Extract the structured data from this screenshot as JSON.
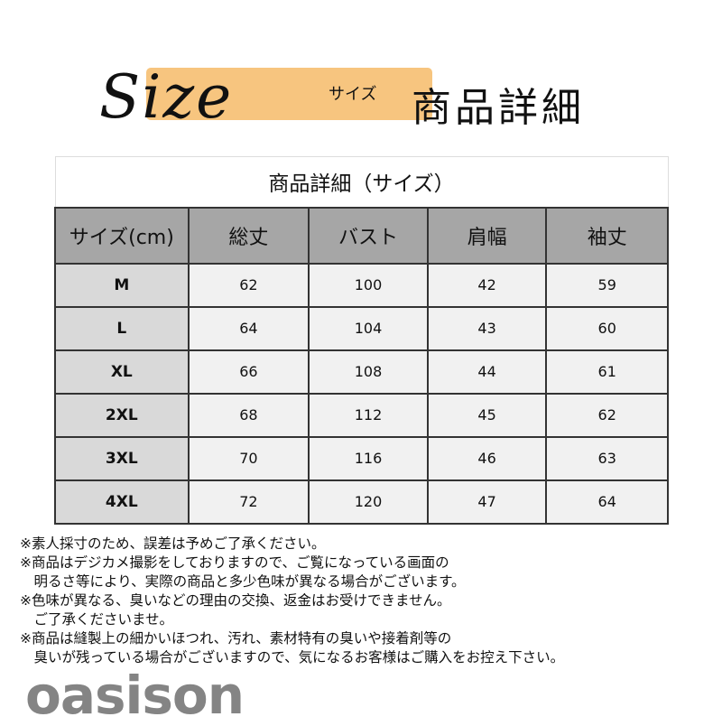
{
  "banner": {
    "size_word": "Size",
    "size_kana": "サイズ",
    "title": "商品詳細"
  },
  "table": {
    "caption": "商品詳細（サイズ）",
    "headers": [
      "サイズ(cm)",
      "総丈",
      "バスト",
      "肩幅",
      "袖丈"
    ],
    "rows": [
      [
        "M",
        "62",
        "100",
        "42",
        "59"
      ],
      [
        "L",
        "64",
        "104",
        "43",
        "60"
      ],
      [
        "XL",
        "66",
        "108",
        "44",
        "61"
      ],
      [
        "2XL",
        "68",
        "112",
        "45",
        "62"
      ],
      [
        "3XL",
        "70",
        "116",
        "46",
        "63"
      ],
      [
        "4XL",
        "72",
        "120",
        "47",
        "64"
      ]
    ]
  },
  "notes": [
    "※素人採寸のため、誤差は予めご了承ください。",
    "※商品はデジカメ撮影をしておりますので、ご覧になっている画面の",
    "　明るさ等により、実際の商品と多少色味が異なる場合がございます。",
    "※色味が異なる、臭いなどの理由の交換、返金はお受けできません。",
    "　ご了承くださいませ。",
    "※商品は縫製上の細かいほつれ、汚れ、素材特有の臭いや接着剤等の",
    "　臭いが残っている場合がございますので、気になるお客様はご購入をお控え下さい。"
  ],
  "watermark": "oasison",
  "colors": {
    "highlight": "#f7c57f",
    "header_bg": "#a6a6a6",
    "size_col_bg": "#d9d9d9",
    "cell_bg": "#f1f1f1"
  }
}
